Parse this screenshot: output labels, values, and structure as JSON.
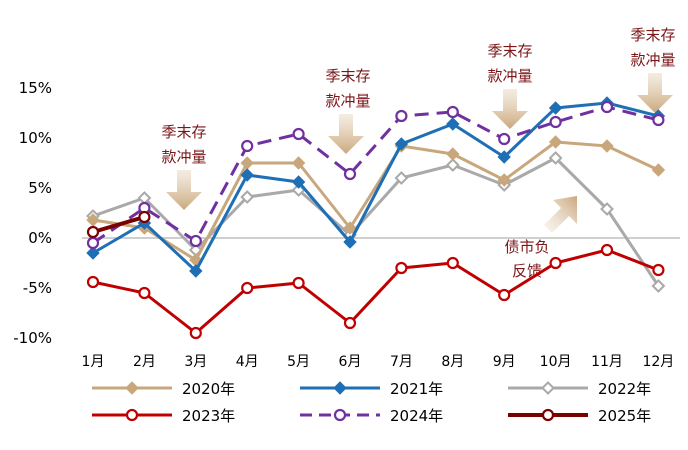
{
  "chart_data": {
    "type": "line",
    "title": "",
    "xlabel": "",
    "ylabel": "",
    "categories": [
      "1月",
      "2月",
      "3月",
      "4月",
      "5月",
      "6月",
      "7月",
      "8月",
      "9月",
      "10月",
      "11月",
      "12月"
    ],
    "ylim": [
      -10,
      15
    ],
    "yticks": [
      {
        "value": 15,
        "label": "15%"
      },
      {
        "value": 10,
        "label": "10%"
      },
      {
        "value": 5,
        "label": "5%"
      },
      {
        "value": 0,
        "label": "0%"
      },
      {
        "value": -5,
        "label": "-5%"
      },
      {
        "value": -10,
        "label": "-10%"
      }
    ],
    "series": [
      {
        "name": "2020年",
        "color": "#C9A77C",
        "marker": "diamond-filled",
        "dashed": false,
        "values": [
          1.8,
          1.0,
          -2.2,
          7.5,
          7.5,
          1.0,
          9.2,
          8.4,
          5.8,
          9.6,
          9.2,
          6.8
        ]
      },
      {
        "name": "2021年",
        "color": "#1E6FB5",
        "marker": "diamond-filled",
        "dashed": false,
        "values": [
          -1.5,
          1.5,
          -3.3,
          6.3,
          5.6,
          -0.4,
          9.4,
          11.4,
          8.1,
          13.0,
          13.5,
          12.2
        ]
      },
      {
        "name": "2022年",
        "color": "#A9A9A9",
        "marker": "diamond-open",
        "dashed": false,
        "values": [
          2.2,
          4.0,
          -1.2,
          4.1,
          4.8,
          0.3,
          6.0,
          7.3,
          5.3,
          8.0,
          2.9,
          -4.8
        ]
      },
      {
        "name": "2023年",
        "color": "#C00000",
        "marker": "circle-open",
        "dashed": false,
        "values": [
          -4.4,
          -5.5,
          -9.5,
          -5.0,
          -4.5,
          -8.5,
          -3.0,
          -2.5,
          -5.7,
          -2.5,
          -1.2,
          -3.2
        ]
      },
      {
        "name": "2024年",
        "color": "#7030A0",
        "marker": "circle-open",
        "dashed": true,
        "values": [
          -0.5,
          3.0,
          -0.3,
          9.2,
          10.4,
          6.4,
          12.2,
          12.6,
          9.9,
          11.6,
          13.1,
          11.8
        ]
      },
      {
        "name": "2025年",
        "color": "#7B0000",
        "marker": "circle-open",
        "dashed": false,
        "values": [
          0.6,
          2.1,
          null,
          null,
          null,
          null,
          null,
          null,
          null,
          null,
          null,
          null
        ]
      }
    ],
    "annotations": [
      {
        "lines": [
          "季末存",
          "款冲量"
        ],
        "month": "3月",
        "type": "arrow-down"
      },
      {
        "lines": [
          "季末存",
          "款冲量"
        ],
        "month": "6月",
        "type": "arrow-down"
      },
      {
        "lines": [
          "季末存",
          "款冲量"
        ],
        "month": "9月",
        "type": "arrow-down"
      },
      {
        "lines": [
          "季末存",
          "款冲量"
        ],
        "month": "12月",
        "type": "arrow-down"
      },
      {
        "lines": [
          "债市负",
          "反馈"
        ],
        "month": "10月",
        "type": "arrow-diagonal"
      }
    ],
    "legend_position": "bottom"
  }
}
